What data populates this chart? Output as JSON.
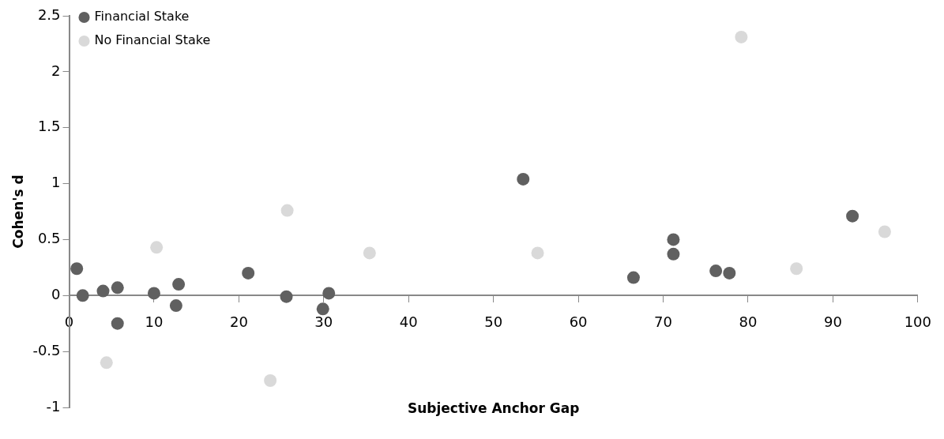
{
  "chart_data": {
    "type": "scatter",
    "xlabel": "Subjective Anchor Gap",
    "ylabel": "Cohen's d",
    "xlim": [
      0,
      100
    ],
    "xticks": [
      0,
      10,
      20,
      30,
      40,
      50,
      60,
      70,
      80,
      90,
      100
    ],
    "ylim": [
      -1,
      2.5
    ],
    "yticks": [
      -1,
      -0.5,
      0,
      0.5,
      1,
      1.5,
      2,
      2.5
    ],
    "grid": false,
    "legend": "top left",
    "marker": "circle",
    "series": [
      {
        "name": "Financial Stake",
        "color": "#606060",
        "x": [
          0.9,
          1.6,
          4.0,
          5.7,
          5.7,
          10.0,
          12.9,
          12.6,
          21.1,
          25.6,
          30.6,
          29.9,
          53.5,
          66.5,
          71.2,
          71.2,
          76.2,
          77.8,
          92.3
        ],
        "values": [
          0.24,
          0,
          0.04,
          0.07,
          -0.25,
          0.02,
          0.1,
          -0.09,
          0.2,
          -0.01,
          0.02,
          -0.12,
          1.04,
          0.16,
          0.5,
          0.37,
          0.22,
          0.2,
          0.71
        ]
      },
      {
        "name": "No Financial Stake",
        "color": "#d9d9d9",
        "x": [
          10.3,
          25.7,
          4.4,
          23.7,
          35.4,
          55.2,
          79.2,
          85.7,
          96.1
        ],
        "values": [
          0.43,
          0.76,
          -0.6,
          -0.76,
          0.38,
          0.38,
          2.31,
          0.24,
          0.57
        ]
      }
    ]
  }
}
